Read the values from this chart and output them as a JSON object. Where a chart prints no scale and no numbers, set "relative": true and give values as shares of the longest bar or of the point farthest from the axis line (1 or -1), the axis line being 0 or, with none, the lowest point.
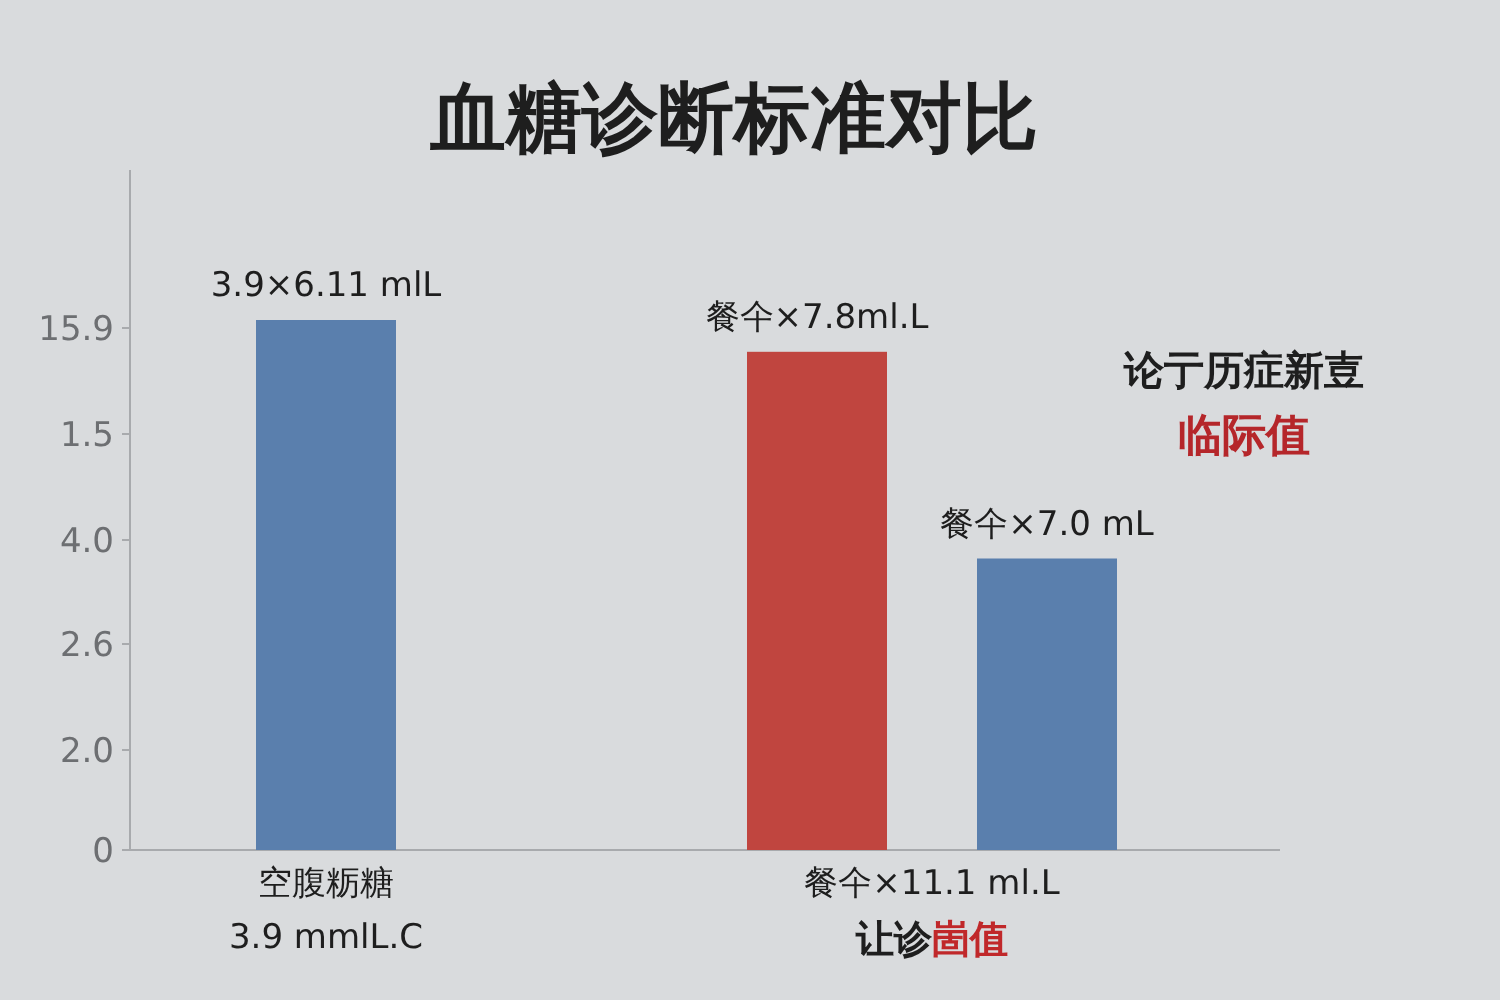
{
  "chart_data": {
    "type": "bar",
    "title": "血糖诊断标准对比",
    "relative": true,
    "categories": [
      "空腹粝糖",
      "餐仐×11.1 ml.L"
    ],
    "series": [
      {
        "colors": [
          "#5a7fad",
          "#c0453f"
        ],
        "values": [
          1,
          0.94
        ]
      },
      {
        "colors": [
          null,
          "#5a7fad"
        ],
        "values": [
          null,
          0.55
        ]
      }
    ],
    "annotations": [
      "0",
      "2.0",
      "2.6",
      "4.0",
      "1.5",
      "15.9",
      "3.9×6.11 mlL",
      "餐仐×7.8ml.L",
      "餐仐×7.0 mL",
      "3.9 mmlL.C",
      "让诊",
      "崮值",
      "论亍历症新壴",
      "临际值"
    ]
  }
}
